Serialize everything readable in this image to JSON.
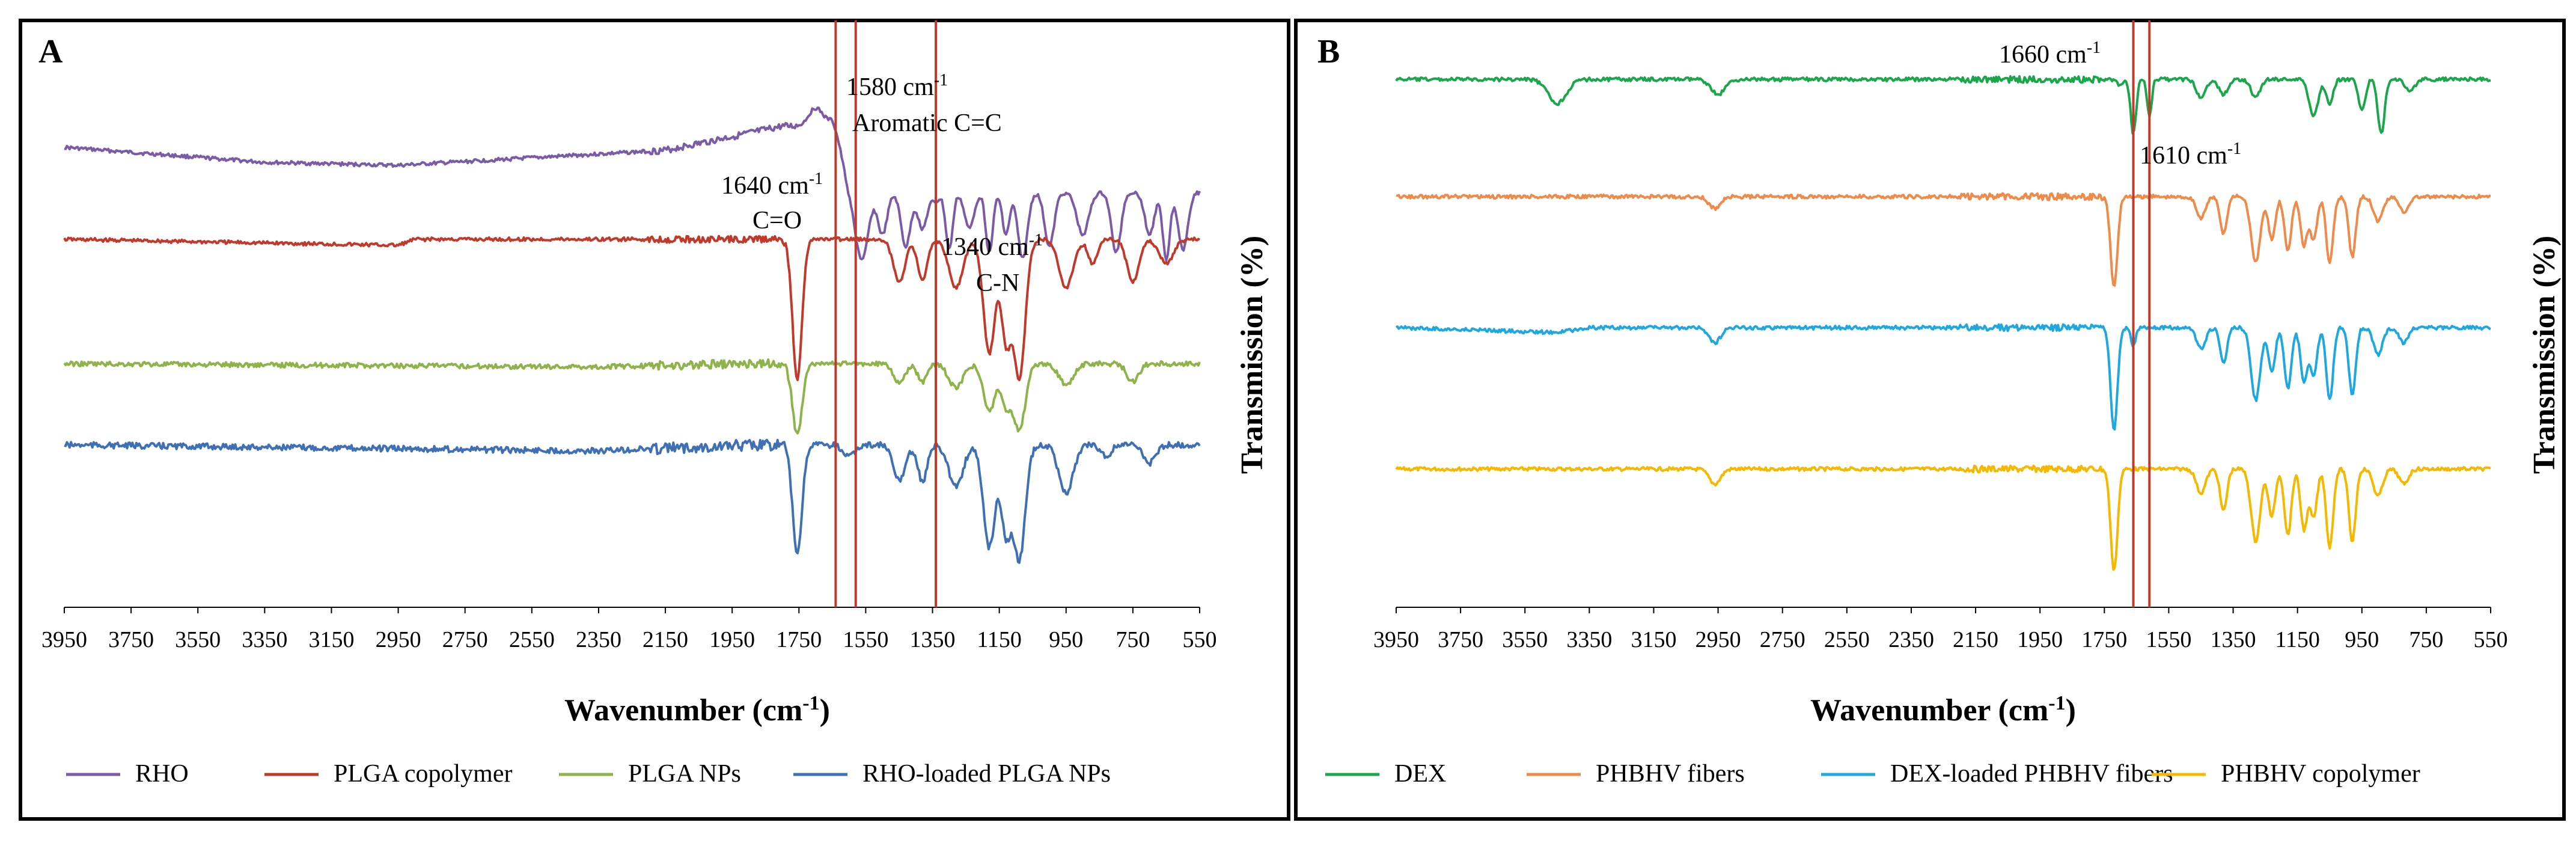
{
  "chart_data": [
    {
      "type": "line",
      "panel_label": "A",
      "xlabel": "Wavenumber (cm",
      "xlabel_sup": "-1",
      "xlabel_close": ")",
      "ylabel": "Transmission  (%)",
      "xlim": [
        3950,
        550
      ],
      "xticks": [
        3950,
        3750,
        3550,
        3350,
        3150,
        2950,
        2750,
        2550,
        2350,
        2150,
        1950,
        1750,
        1550,
        1350,
        1150,
        950,
        750,
        550
      ],
      "series": [
        {
          "name": "RHO",
          "color": "#7b5aa6"
        },
        {
          "name": "PLGA copolymer",
          "color": "#c0392b"
        },
        {
          "name": "PLGA NPs",
          "color": "#8db34a"
        },
        {
          "name": "RHO-loaded PLGA NPs",
          "color": "#3f6fb5"
        }
      ],
      "reference_lines": [
        1640,
        1580,
        1340
      ],
      "annotations": [
        {
          "text": "1580 cm",
          "sup": "-1",
          "line2": "Aromatic C=C"
        },
        {
          "text": "1640 cm",
          "sup": "-1",
          "line2": "C=O"
        },
        {
          "text": "1340 cm",
          "sup": "-1",
          "line2": "C-N"
        }
      ]
    },
    {
      "type": "line",
      "panel_label": "B",
      "xlabel": "Wavenumber (cm",
      "xlabel_sup": "-1",
      "xlabel_close": ")",
      "ylabel": "Transmission  (%)",
      "xlim": [
        3950,
        550
      ],
      "xticks": [
        3950,
        3750,
        3550,
        3350,
        3150,
        2950,
        2750,
        2550,
        2350,
        2150,
        1950,
        1750,
        1550,
        1350,
        1150,
        950,
        750,
        550
      ],
      "series": [
        {
          "name": "DEX",
          "color": "#1aa64a"
        },
        {
          "name": "PHBHV fibers",
          "color": "#ee8a4a"
        },
        {
          "name": "DEX-loaded PHBHV fibers",
          "color": "#1fa8e0"
        },
        {
          "name": "PHBHV copolymer",
          "color": "#f5b800"
        }
      ],
      "reference_lines": [
        1660,
        1610
      ],
      "annotations": [
        {
          "text": "1660 cm",
          "sup": "-1"
        },
        {
          "text": "1610 cm",
          "sup": "-1"
        }
      ]
    }
  ],
  "colors": {
    "reference_line": "#c0392b",
    "frame": "#000000"
  }
}
